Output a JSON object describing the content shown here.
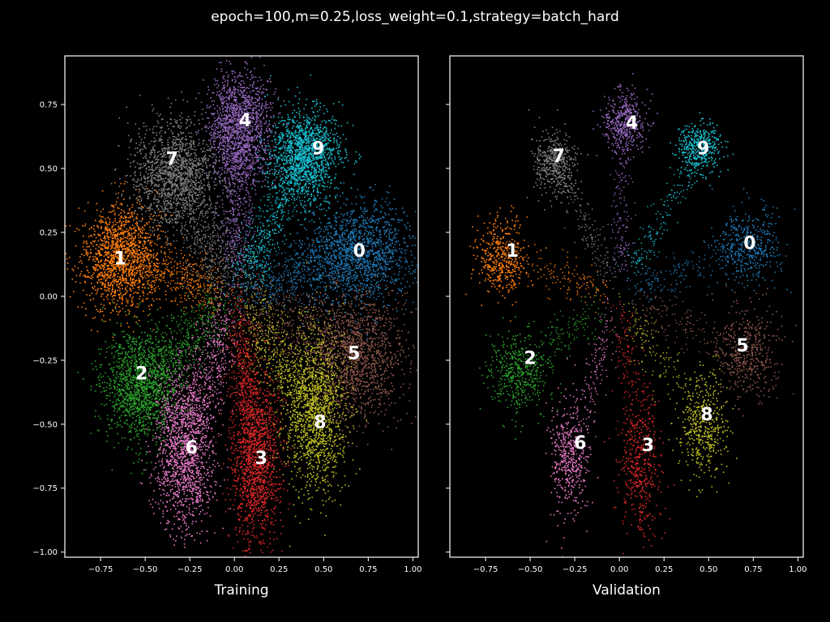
{
  "figure": {
    "suptitle": "epoch=100,m=0.25,loss_weight=0.1,strategy=batch_hard"
  },
  "chart_data": [
    {
      "type": "scatter",
      "xlabel": "Training",
      "ylabel": "",
      "xlim": [
        -0.95,
        1.03
      ],
      "ylim": [
        -1.02,
        0.94
      ],
      "xticks": [
        "-0.75",
        "-0.50",
        "-0.25",
        "0.00",
        "0.25",
        "0.50",
        "0.75",
        "1.00"
      ],
      "yticks": [
        "-1.00",
        "-0.75",
        "-0.50",
        "-0.25",
        "0.00",
        "0.25",
        "0.50",
        "0.75"
      ],
      "grid": false,
      "legend": "none",
      "clusters": [
        {
          "label": "0",
          "center": [
            0.7,
            0.17
          ],
          "spread": [
            0.16,
            0.1
          ],
          "color": "#1f77b4",
          "density": 1.0
        },
        {
          "label": "1",
          "center": [
            -0.64,
            0.15
          ],
          "spread": [
            0.11,
            0.1
          ],
          "color": "#ff7f0e",
          "density": 1.0
        },
        {
          "label": "2",
          "center": [
            -0.52,
            -0.35
          ],
          "spread": [
            0.11,
            0.11
          ],
          "color": "#2ca02c",
          "density": 1.0
        },
        {
          "label": "3",
          "center": [
            0.12,
            -0.63
          ],
          "spread": [
            0.07,
            0.18
          ],
          "color": "#d62728",
          "density": 1.0
        },
        {
          "label": "4",
          "center": [
            0.03,
            0.66
          ],
          "spread": [
            0.09,
            0.11
          ],
          "color": "#9467bd",
          "density": 1.0
        },
        {
          "label": "5",
          "center": [
            0.68,
            -0.23
          ],
          "spread": [
            0.14,
            0.13
          ],
          "color": "#8c564b",
          "density": 1.0
        },
        {
          "label": "6",
          "center": [
            -0.28,
            -0.6
          ],
          "spread": [
            0.08,
            0.16
          ],
          "color": "#e377c2",
          "density": 1.0
        },
        {
          "label": "7",
          "center": [
            -0.33,
            0.48
          ],
          "spread": [
            0.12,
            0.1
          ],
          "color": "#7f7f7f",
          "density": 1.0
        },
        {
          "label": "8",
          "center": [
            0.45,
            -0.45
          ],
          "spread": [
            0.09,
            0.16
          ],
          "color": "#bcbd22",
          "density": 1.0
        },
        {
          "label": "9",
          "center": [
            0.4,
            0.55
          ],
          "spread": [
            0.1,
            0.09
          ],
          "color": "#17becf",
          "density": 1.0
        }
      ],
      "label_positions": {
        "0": [
          0.7,
          0.18
        ],
        "1": [
          -0.64,
          0.15
        ],
        "2": [
          -0.52,
          -0.3
        ],
        "3": [
          0.15,
          -0.63
        ],
        "4": [
          0.06,
          0.69
        ],
        "5": [
          0.67,
          -0.22
        ],
        "6": [
          -0.24,
          -0.59
        ],
        "7": [
          -0.35,
          0.54
        ],
        "8": [
          0.48,
          -0.49
        ],
        "9": [
          0.47,
          0.58
        ]
      }
    },
    {
      "type": "scatter",
      "xlabel": "Validation",
      "ylabel": "",
      "xlim": [
        -0.95,
        1.03
      ],
      "ylim": [
        -1.02,
        0.94
      ],
      "xticks": [
        "-0.75",
        "-0.50",
        "-0.25",
        "0.00",
        "0.25",
        "0.50",
        "0.75",
        "1.00"
      ],
      "yticks": [
        "-1.00",
        "-0.75",
        "-0.50",
        "-0.25",
        "0.00",
        "0.25",
        "0.50",
        "0.75"
      ],
      "grid": false,
      "legend": "none",
      "clusters": [
        {
          "label": "0",
          "center": [
            0.72,
            0.2
          ],
          "spread": [
            0.09,
            0.07
          ],
          "color": "#1f77b4",
          "density": 0.3
        },
        {
          "label": "1",
          "center": [
            -0.66,
            0.15
          ],
          "spread": [
            0.07,
            0.07
          ],
          "color": "#ff7f0e",
          "density": 0.3
        },
        {
          "label": "2",
          "center": [
            -0.57,
            -0.3
          ],
          "spread": [
            0.08,
            0.08
          ],
          "color": "#2ca02c",
          "density": 0.3
        },
        {
          "label": "3",
          "center": [
            0.12,
            -0.65
          ],
          "spread": [
            0.06,
            0.13
          ],
          "color": "#d62728",
          "density": 0.3
        },
        {
          "label": "4",
          "center": [
            0.03,
            0.68
          ],
          "spread": [
            0.06,
            0.06
          ],
          "color": "#9467bd",
          "density": 0.3
        },
        {
          "label": "5",
          "center": [
            0.71,
            -0.22
          ],
          "spread": [
            0.09,
            0.09
          ],
          "color": "#8c564b",
          "density": 0.3
        },
        {
          "label": "6",
          "center": [
            -0.28,
            -0.63
          ],
          "spread": [
            0.05,
            0.11
          ],
          "color": "#e377c2",
          "density": 0.3
        },
        {
          "label": "7",
          "center": [
            -0.36,
            0.52
          ],
          "spread": [
            0.06,
            0.06
          ],
          "color": "#7f7f7f",
          "density": 0.3
        },
        {
          "label": "8",
          "center": [
            0.47,
            -0.5
          ],
          "spread": [
            0.07,
            0.1
          ],
          "color": "#bcbd22",
          "density": 0.3
        },
        {
          "label": "9",
          "center": [
            0.45,
            0.58
          ],
          "spread": [
            0.06,
            0.05
          ],
          "color": "#17becf",
          "density": 0.3
        }
      ],
      "label_positions": {
        "0": [
          0.73,
          0.21
        ],
        "1": [
          -0.6,
          0.18
        ],
        "2": [
          -0.5,
          -0.24
        ],
        "3": [
          0.16,
          -0.58
        ],
        "4": [
          0.07,
          0.68
        ],
        "5": [
          0.69,
          -0.19
        ],
        "6": [
          -0.22,
          -0.57
        ],
        "7": [
          -0.34,
          0.55
        ],
        "8": [
          0.49,
          -0.46
        ],
        "9": [
          0.47,
          0.58
        ]
      }
    }
  ]
}
